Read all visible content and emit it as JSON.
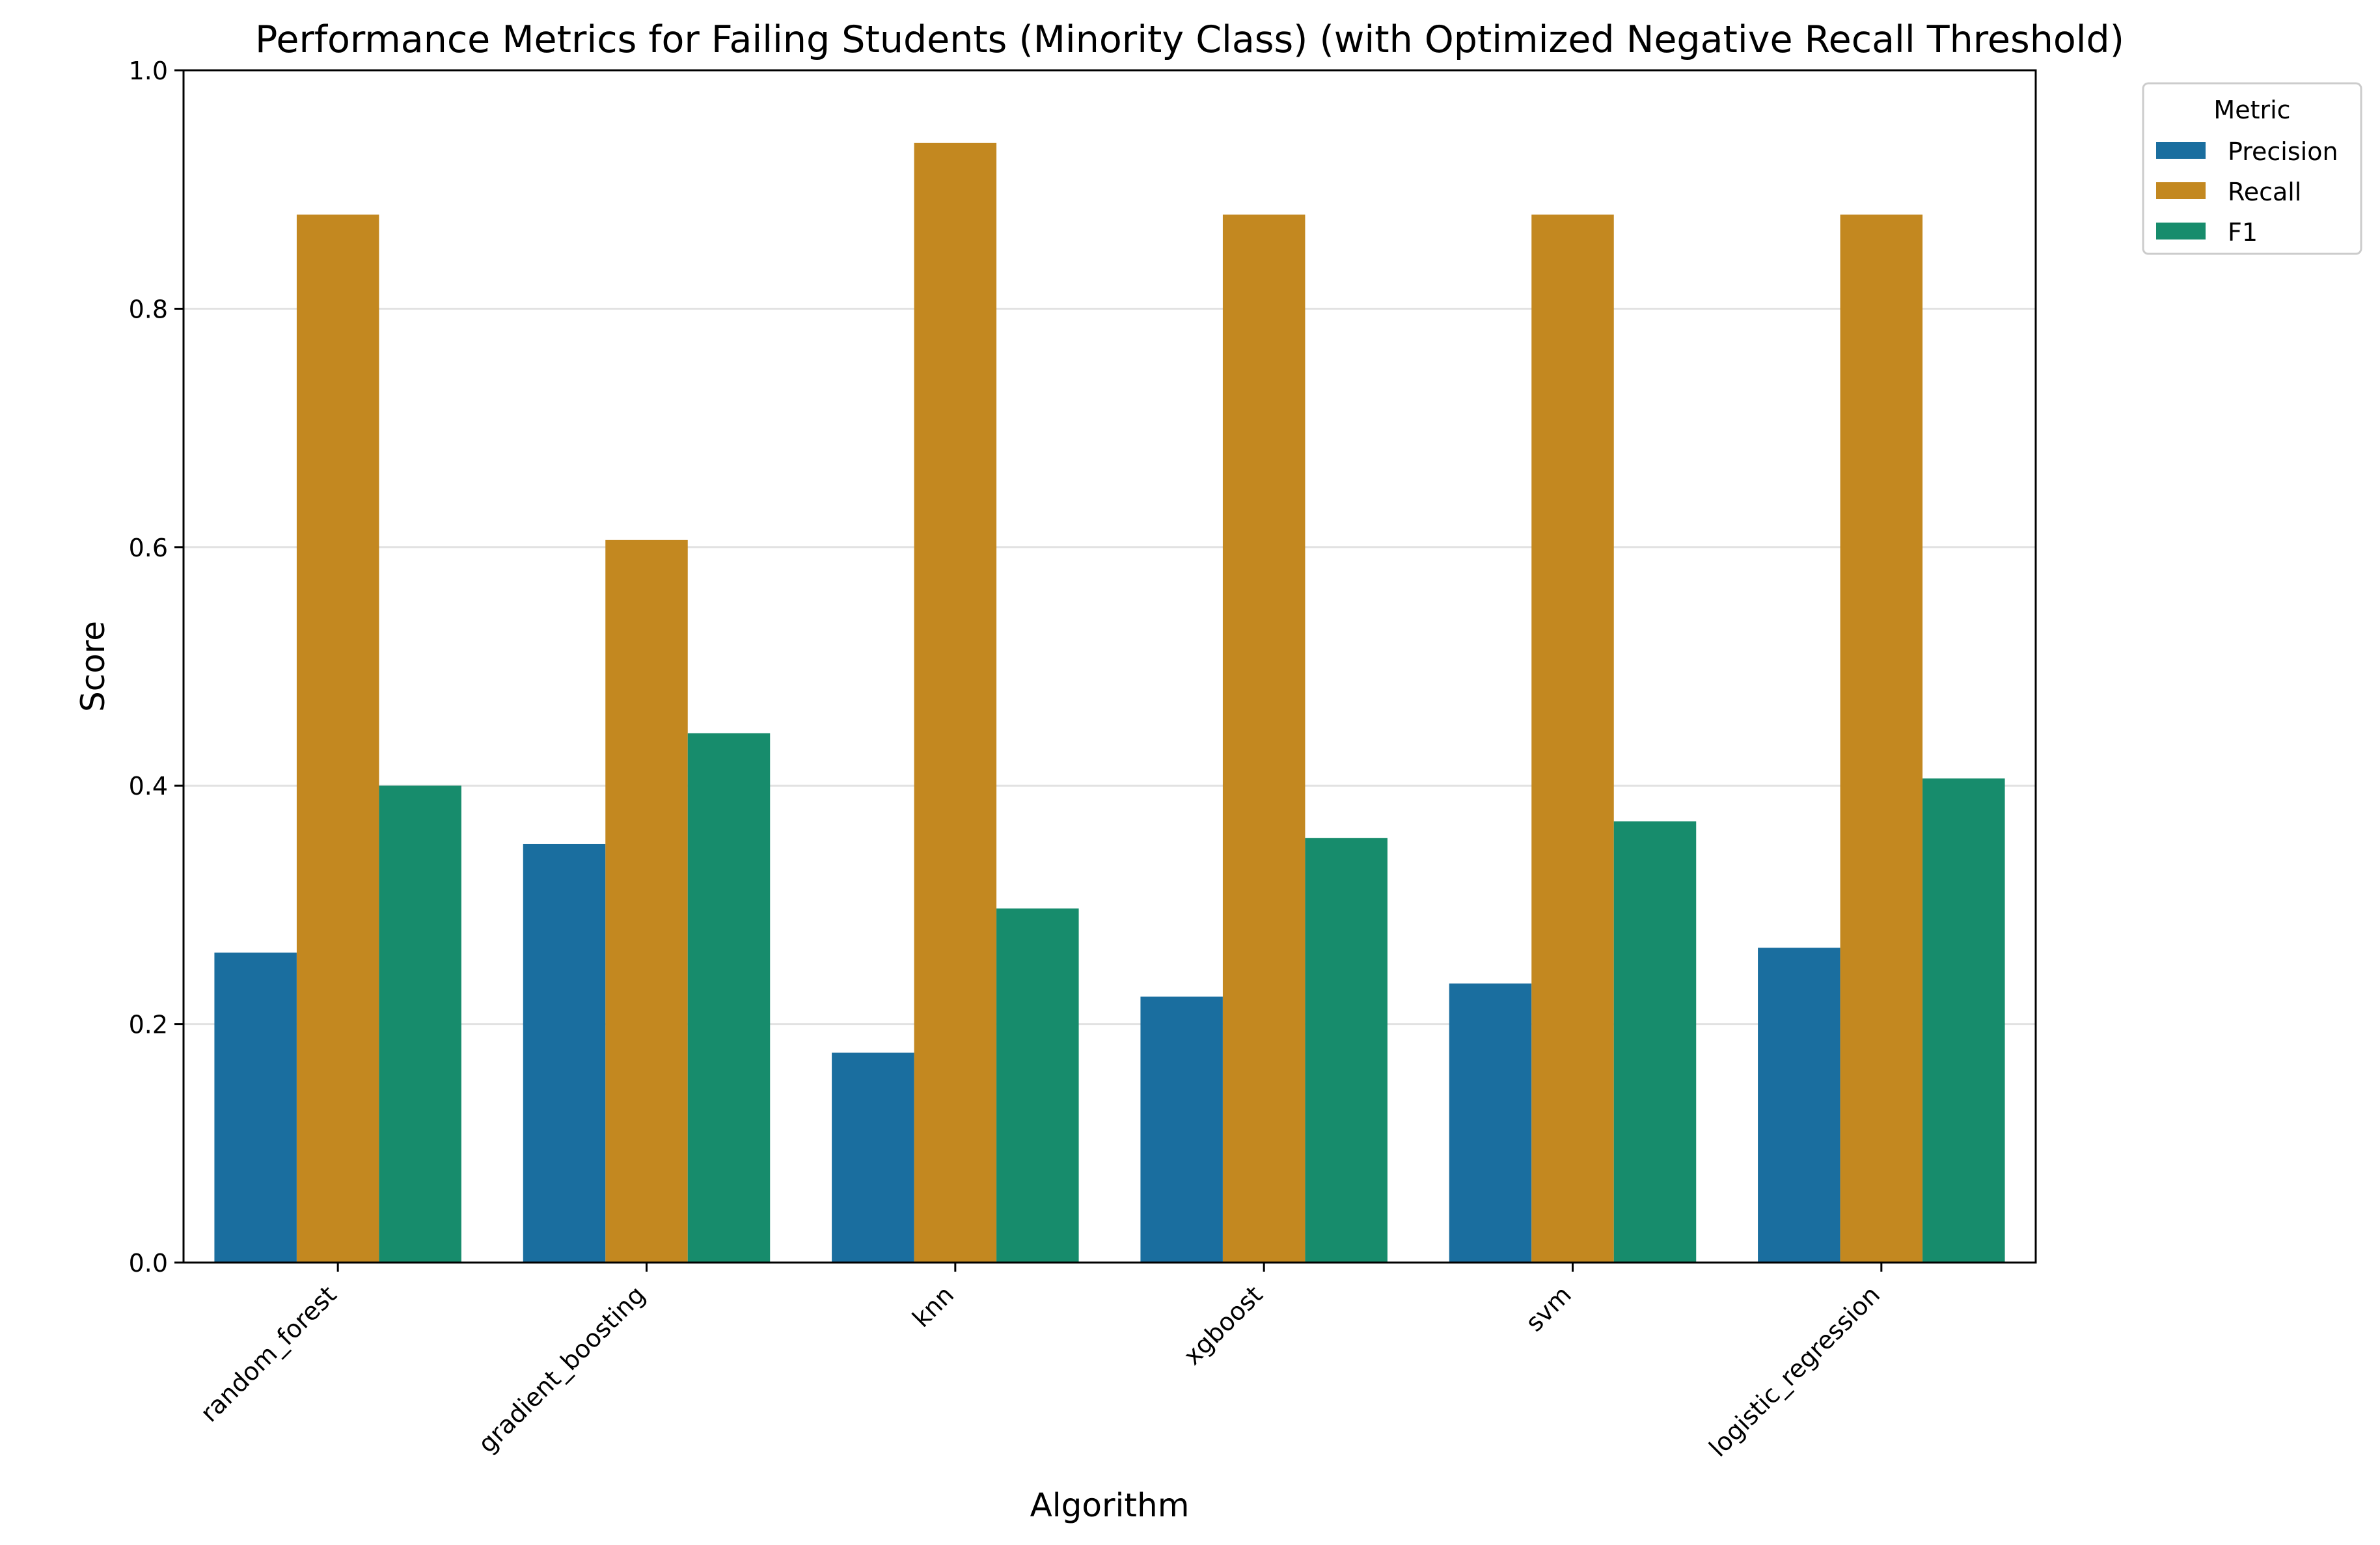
{
  "chart_data": {
    "type": "bar",
    "title": "Performance Metrics for Failing Students (Minority Class) (with Optimized Negative Recall Threshold)",
    "xlabel": "Algorithm",
    "ylabel": "Score",
    "ylim": [
      0,
      1.0
    ],
    "yticks": [
      "0.0",
      "0.2",
      "0.4",
      "0.6",
      "0.8",
      "1.0"
    ],
    "grid": "horizontal",
    "categories": [
      "random_forest",
      "gradient_boosting",
      "knn",
      "xgboost",
      "svm",
      "logistic_regression"
    ],
    "series": [
      {
        "name": "Precision",
        "color": "#1a6e9f",
        "values": [
          0.26,
          0.351,
          0.176,
          0.223,
          0.234,
          0.264
        ]
      },
      {
        "name": "Recall",
        "color": "#c38820",
        "values": [
          0.879,
          0.606,
          0.939,
          0.879,
          0.879,
          0.879
        ]
      },
      {
        "name": "F1",
        "color": "#178c6c",
        "values": [
          0.4,
          0.444,
          0.297,
          0.356,
          0.37,
          0.406
        ]
      }
    ],
    "legend": {
      "title": "Metric",
      "placement": "outside-top-right"
    }
  }
}
